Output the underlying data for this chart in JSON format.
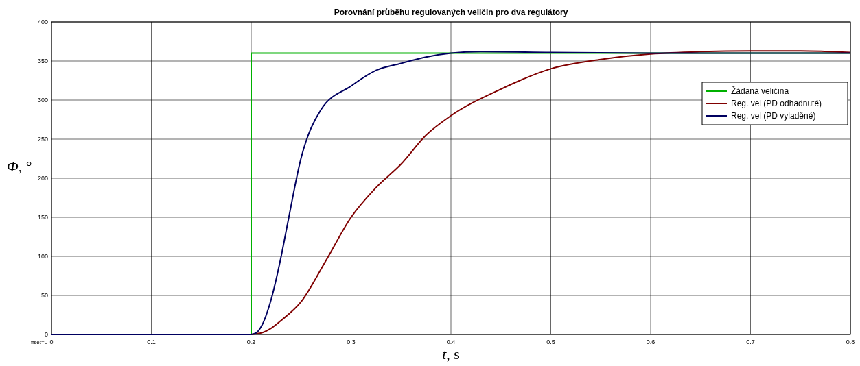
{
  "chart_data": {
    "type": "line",
    "title": "Porovnání průběhu regulovaných veličin pro dva regulátory",
    "xlabel": "t, s",
    "ylabel": "Φ, °",
    "annotations": [
      "ffset=0"
    ],
    "xlim": [
      0,
      0.8
    ],
    "ylim": [
      0,
      400
    ],
    "xticks": [
      0,
      0.1,
      0.2,
      0.3,
      0.4,
      0.5,
      0.6,
      0.7,
      0.8
    ],
    "yticks": [
      0,
      50,
      100,
      150,
      200,
      250,
      300,
      350,
      400
    ],
    "grid": true,
    "legend": "right",
    "series": [
      {
        "name": "Žádaná veličina",
        "color": "#00b000",
        "x": [
          0,
          0.2,
          0.2,
          0.8
        ],
        "values": [
          0,
          0,
          360,
          360
        ]
      },
      {
        "name": "Reg. vel (PD odhadnuté)",
        "color": "#800000",
        "x": [
          0,
          0.2,
          0.205,
          0.21,
          0.22,
          0.23,
          0.25,
          0.275,
          0.3,
          0.325,
          0.35,
          0.375,
          0.4,
          0.45,
          0.5,
          0.55,
          0.6,
          0.65,
          0.7,
          0.75,
          0.8
        ],
        "values": [
          0,
          0,
          1,
          2,
          8,
          18,
          42,
          95,
          150,
          188,
          218,
          255,
          280,
          314,
          340,
          352,
          359,
          362,
          363,
          363,
          361
        ]
      },
      {
        "name": "Reg. vel (PD vyladěné)",
        "color": "#000060",
        "x": [
          0,
          0.2,
          0.205,
          0.21,
          0.22,
          0.23,
          0.236,
          0.25,
          0.27,
          0.3,
          0.325,
          0.35,
          0.375,
          0.4,
          0.43,
          0.5,
          0.6,
          0.7,
          0.8
        ],
        "values": [
          0,
          0,
          2,
          10,
          45,
          100,
          139,
          226,
          288,
          318,
          338,
          347,
          355,
          360,
          362,
          361,
          360,
          360,
          360
        ]
      }
    ]
  }
}
